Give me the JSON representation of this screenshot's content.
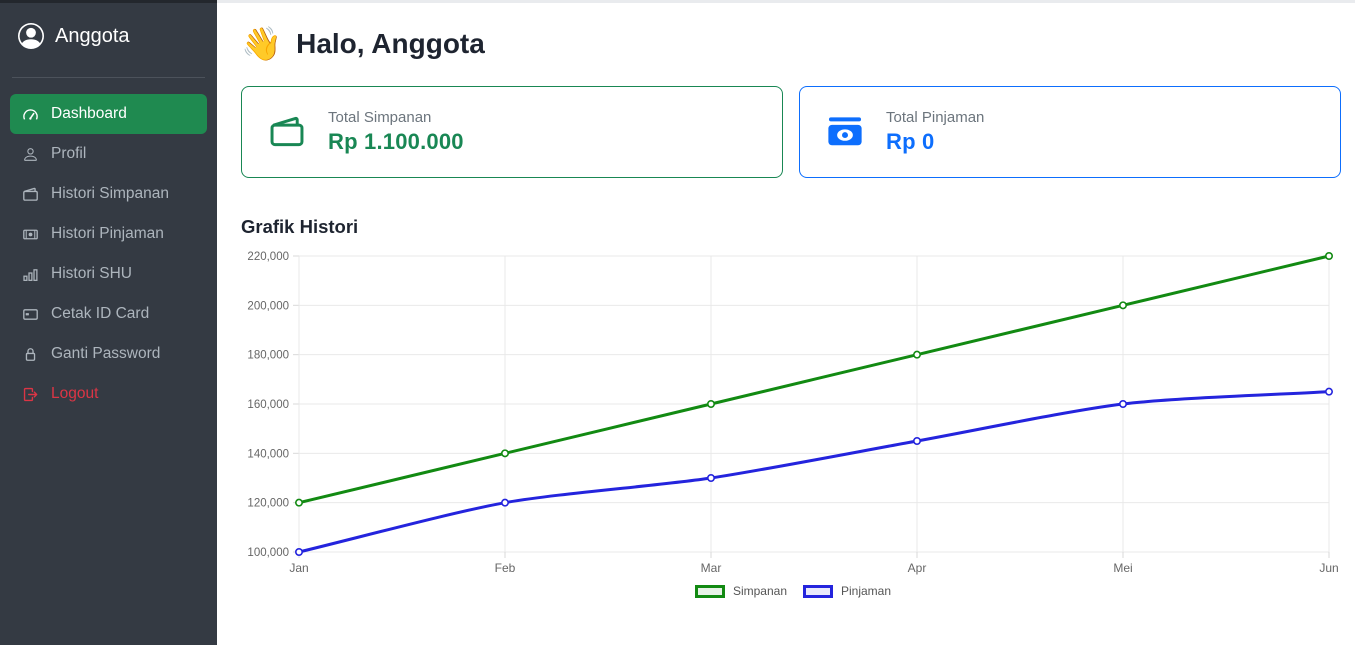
{
  "sidebar": {
    "brand": {
      "label": "Anggota",
      "icon": "person-circle-icon"
    },
    "items": [
      {
        "label": "Dashboard",
        "icon": "speedometer-icon",
        "active": true
      },
      {
        "label": "Profil",
        "icon": "person-icon"
      },
      {
        "label": "Histori Simpanan",
        "icon": "wallet-icon"
      },
      {
        "label": "Histori Pinjaman",
        "icon": "cash-icon"
      },
      {
        "label": "Histori SHU",
        "icon": "bar-chart-icon"
      },
      {
        "label": "Cetak ID Card",
        "icon": "credit-card-icon"
      },
      {
        "label": "Ganti Password",
        "icon": "lock-icon"
      },
      {
        "label": "Logout",
        "icon": "logout-icon",
        "danger": true
      }
    ]
  },
  "header": {
    "emoji": "👋",
    "title": "Halo, Anggota"
  },
  "cards": [
    {
      "label": "Total Simpanan",
      "value": "Rp 1.100.000",
      "color": "#198754",
      "icon": "wallet-icon"
    },
    {
      "label": "Total Pinjaman",
      "value": "Rp 0",
      "color": "#0d6efd",
      "icon": "cash-fill-icon"
    }
  ],
  "chart_data": {
    "type": "line",
    "title": "Grafik Histori",
    "categories": [
      "Jan",
      "Feb",
      "Mar",
      "Apr",
      "Mei",
      "Jun"
    ],
    "series": [
      {
        "name": "Simpanan",
        "color": "#128a12",
        "values": [
          120000,
          140000,
          160000,
          180000,
          200000,
          220000
        ]
      },
      {
        "name": "Pinjaman",
        "color": "#2424dd",
        "values": [
          100000,
          120000,
          130000,
          145000,
          160000,
          165000
        ]
      }
    ],
    "xlabel": "",
    "ylabel": "",
    "ylim": [
      100000,
      220000
    ],
    "yticks": [
      100000,
      120000,
      140000,
      160000,
      180000,
      200000,
      220000
    ],
    "grid": true,
    "legend_position": "bottom"
  },
  "colors": {
    "sidebar_bg": "#343a43",
    "active_item_bg": "#1f8a50",
    "danger": "#dc3545",
    "simpanan_accent": "#198754",
    "pinjaman_accent": "#0d6efd",
    "grid_line": "#e9e9e9",
    "tick_text": "#666666"
  }
}
